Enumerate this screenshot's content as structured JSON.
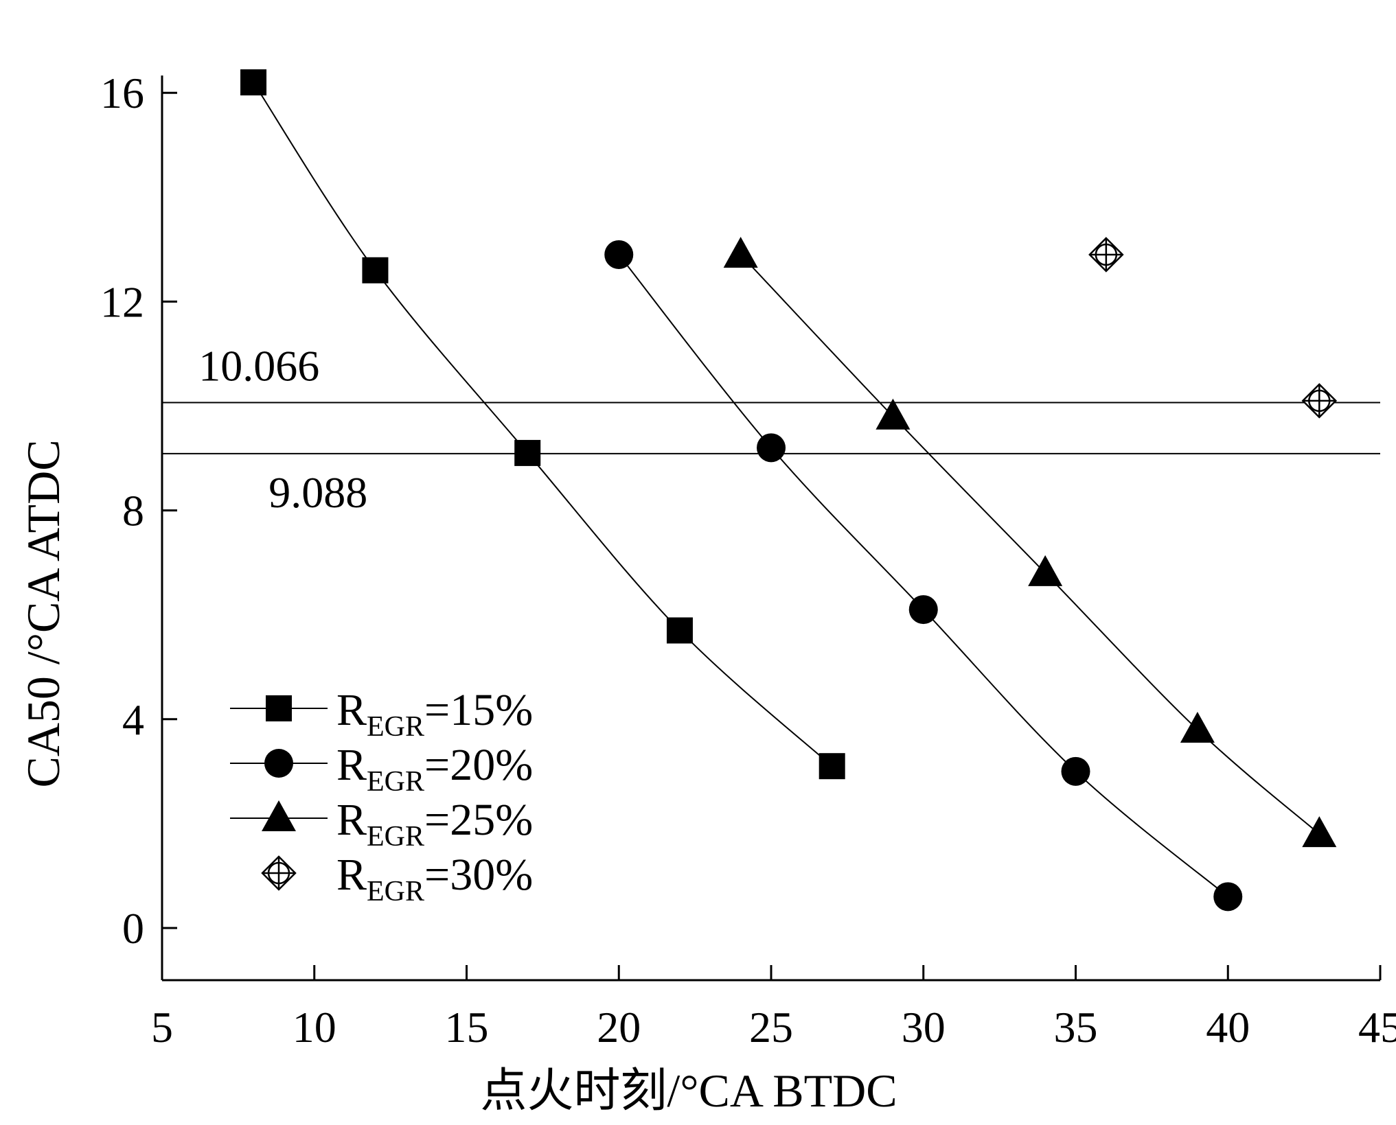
{
  "chart_data": {
    "type": "line",
    "title": "",
    "xlabel": "点火时刻/°CA BTDC",
    "ylabel": "CA50 /°CA ATDC",
    "xlim": [
      5,
      45
    ],
    "ylim": [
      -1,
      16.2
    ],
    "x_ticks": [
      5,
      10,
      15,
      20,
      25,
      30,
      35,
      40,
      45
    ],
    "y_ticks": [
      0,
      4,
      8,
      12,
      16
    ],
    "grid": false,
    "legend_position": "lower-left",
    "series": [
      {
        "name_main": "R",
        "name_sub": "EGR",
        "name_tail": "=15%",
        "marker": "square",
        "line": true,
        "x": [
          8,
          12,
          17,
          22,
          27
        ],
        "y": [
          16.2,
          12.6,
          9.1,
          5.7,
          3.1
        ]
      },
      {
        "name_main": "R",
        "name_sub": "EGR",
        "name_tail": "=20%",
        "marker": "circle",
        "line": true,
        "x": [
          20,
          25,
          30,
          35,
          40
        ],
        "y": [
          12.9,
          9.2,
          6.1,
          3.0,
          0.6
        ]
      },
      {
        "name_main": "R",
        "name_sub": "EGR",
        "name_tail": "=25%",
        "marker": "triangle",
        "line": true,
        "x": [
          24,
          29,
          34,
          39,
          43
        ],
        "y": [
          12.9,
          9.8,
          6.8,
          3.8,
          1.8
        ]
      },
      {
        "name_main": "R",
        "name_sub": "EGR",
        "name_tail": "=30%",
        "marker": "diamond-cross",
        "line": false,
        "x": [
          36,
          43
        ],
        "y": [
          12.9,
          10.1
        ]
      }
    ],
    "reference_lines": [
      {
        "y": 10.066,
        "label": "10.066",
        "label_x": 6.2,
        "label_side": "above"
      },
      {
        "y": 9.088,
        "label": "9.088",
        "label_x": 8.5,
        "label_side": "below"
      }
    ]
  }
}
